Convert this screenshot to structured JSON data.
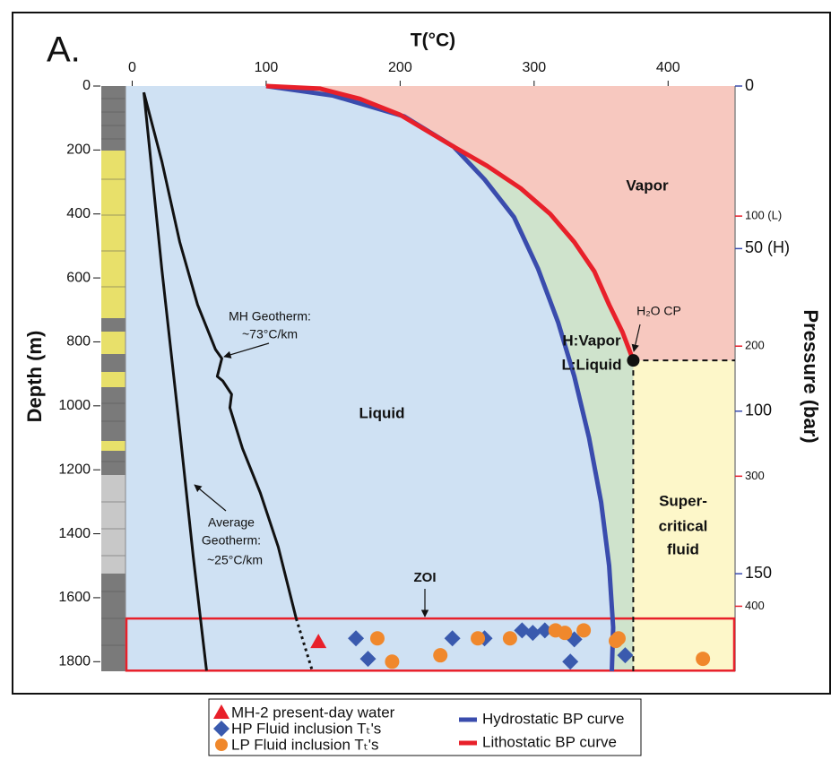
{
  "chart_data": {
    "type": "line",
    "panel_label": "A.",
    "x_label": "T(°C)",
    "y_label": "Depth (m)",
    "y2_label": "Pressure (bar)",
    "xlim": [
      -5,
      450
    ],
    "xticks": [
      0,
      100,
      200,
      300,
      400
    ],
    "ylim": [
      0,
      1830
    ],
    "yticks": [
      0,
      200,
      400,
      600,
      800,
      1000,
      1200,
      1400,
      1600,
      1800
    ],
    "pressure_axes": [
      {
        "color": "#3a4cad",
        "lim": [
          0,
          180
        ],
        "ticks": [
          0,
          {
            "value": 50,
            "label": "50 (H)"
          },
          100,
          150
        ]
      },
      {
        "color": "#e8202a",
        "lim": [
          0,
          450
        ],
        "ticks": [
          {
            "value": 100,
            "label": "100 (L)"
          },
          200,
          300,
          400
        ]
      }
    ],
    "series": [
      {
        "name": "Hydrostatic BP curve",
        "mode": "line",
        "color": "#3a4cad",
        "x": [
          100,
          150,
          203,
          240,
          263,
          285,
          303,
          318,
          330,
          341,
          350,
          356,
          359,
          358
        ],
        "values": [
          0,
          30,
          95,
          190,
          292,
          410,
          572,
          740,
          908,
          1100,
          1301,
          1500,
          1693,
          1830
        ]
      },
      {
        "name": "Lithostatic BP curve",
        "mode": "line",
        "color": "#e8202a",
        "x": [
          100,
          140,
          170,
          200,
          236,
          265,
          290,
          312,
          330,
          345,
          356,
          366,
          374
        ],
        "values": [
          0,
          8,
          40,
          90,
          180,
          250,
          320,
          400,
          488,
          580,
          684,
          770,
          858
        ]
      },
      {
        "mode": "line",
        "color": "#111111",
        "x": [
          8.7,
          22.1,
          35.5,
          48.8,
          62.2,
          66.9,
          63.5,
          67.6,
          74.2,
          72.9,
          82.3,
          95.7,
          109,
          122.4
        ],
        "values": [
          20,
          235,
          488,
          684,
          824,
          852,
          908,
          922,
          964,
          1006,
          1133,
          1273,
          1441,
          1665
        ]
      },
      {
        "mode": "line",
        "style": "dotted",
        "color": "#111111",
        "x": [
          122.4,
          134.4
        ],
        "values": [
          1665,
          1828
        ]
      },
      {
        "mode": "line",
        "color": "#111111",
        "x": [
          8.7,
          22.1,
          35.5,
          45.5,
          55.5
        ],
        "values": [
          20,
          572,
          1077,
          1469,
          1828
        ]
      },
      {
        "name": "MH-2 present-day water",
        "mode": "scatter",
        "marker": "triangle",
        "color": "#e8202a",
        "x": [
          139
        ],
        "values": [
          1738
        ]
      },
      {
        "name": "HP Fluid inclusion Tₜ's",
        "mode": "scatter",
        "marker": "diamond",
        "color": "#3a5aae",
        "x": [
          167,
          176,
          239,
          263,
          291,
          299,
          308,
          330,
          327,
          368
        ],
        "values": [
          1727,
          1791,
          1727,
          1727,
          1702,
          1710,
          1702,
          1730,
          1800,
          1780
        ]
      },
      {
        "name": "LP Fluid inclusion Tₜ's",
        "mode": "scatter",
        "marker": "circle",
        "color": "#f0882c",
        "x": [
          183,
          194,
          230,
          258,
          282,
          316,
          323,
          337,
          361,
          363,
          426
        ],
        "values": [
          1727,
          1800,
          1780,
          1727,
          1727,
          1702,
          1710,
          1702,
          1735,
          1727,
          1791
        ]
      }
    ],
    "zoi": {
      "label": "ZOI",
      "depth": [
        1665,
        1828
      ]
    },
    "annotations": [
      "Vapor",
      "Liquid",
      "H:Vapor",
      "L:Liquid",
      "H₂O CP",
      "Super-",
      "critical",
      "fluid",
      "MH Geotherm:",
      "~73°C/km",
      "Average",
      "Geotherm:",
      "~25°C/km"
    ]
  }
}
